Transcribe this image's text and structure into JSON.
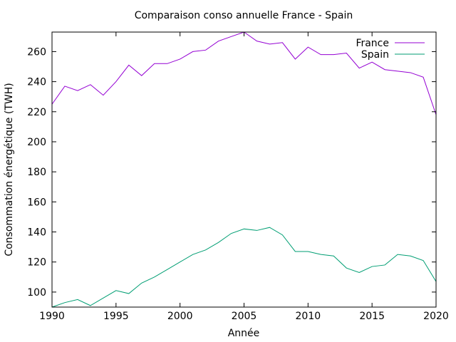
{
  "chart_data": {
    "type": "line",
    "title": "Comparaison conso annuelle France - Spain",
    "xlabel": "Année",
    "ylabel": "Consommation énergétique (TWH)",
    "xlim": [
      1990,
      2020
    ],
    "ylim": [
      90,
      273
    ],
    "xticks": [
      1990,
      1995,
      2000,
      2005,
      2010,
      2015,
      2020
    ],
    "yticks": [
      100,
      120,
      140,
      160,
      180,
      200,
      220,
      240,
      260
    ],
    "grid": false,
    "legend_position": "top-right",
    "x": [
      1990,
      1991,
      1992,
      1993,
      1994,
      1995,
      1996,
      1997,
      1998,
      1999,
      2000,
      2001,
      2002,
      2003,
      2004,
      2005,
      2006,
      2007,
      2008,
      2009,
      2010,
      2011,
      2012,
      2013,
      2014,
      2015,
      2016,
      2017,
      2018,
      2019,
      2020
    ],
    "series": [
      {
        "name": "France",
        "color": "#9400d3",
        "values": [
          225,
          237,
          234,
          238,
          231,
          240,
          251,
          244,
          252,
          252,
          255,
          260,
          261,
          267,
          270,
          273,
          267,
          265,
          266,
          255,
          263,
          258,
          258,
          259,
          249,
          253,
          248,
          247,
          246,
          243,
          218
        ]
      },
      {
        "name": "Spain",
        "color": "#009e73",
        "values": [
          90,
          93,
          95,
          91,
          96,
          101,
          99,
          106,
          110,
          115,
          120,
          125,
          128,
          133,
          139,
          142,
          141,
          143,
          138,
          127,
          127,
          125,
          124,
          116,
          113,
          117,
          118,
          125,
          124,
          121,
          107
        ]
      }
    ]
  }
}
